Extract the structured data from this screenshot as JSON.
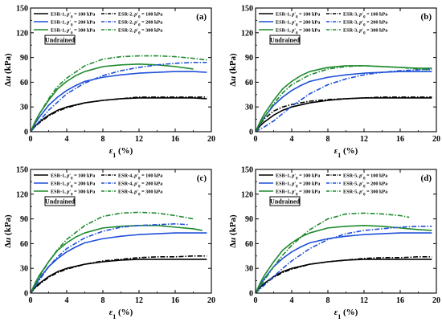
{
  "figure": {
    "y_axis_label_main": "Δu",
    "y_axis_label_unit": " (kPa)",
    "x_axis_label_symbol": "ε",
    "x_axis_label_sub": "1",
    "x_axis_label_unit": " (%)",
    "condition_label": "Undrained"
  },
  "chart_data": [
    {
      "panel": "(a)",
      "type": "line",
      "xlabel": "ε1 (%)",
      "ylabel": "Δu (kPa)",
      "xlim": [
        0,
        20
      ],
      "ylim": [
        0,
        150
      ],
      "xticks": [
        0,
        4,
        8,
        12,
        16,
        20
      ],
      "yticks": [
        0,
        30,
        60,
        90,
        120,
        150
      ],
      "legend_position": "top-left",
      "series": [
        {
          "name": "ESR-1, p′0 = 100 kPa",
          "color": "#000000",
          "dash": "solid",
          "x": [
            0,
            0.5,
            1,
            2,
            3,
            4,
            6,
            8,
            10,
            12,
            14,
            16,
            18,
            19.5
          ],
          "y": [
            0,
            7,
            12,
            20,
            26,
            30,
            35,
            38,
            40,
            41,
            41,
            41,
            41,
            40
          ]
        },
        {
          "name": "ESR-1, p′0 = 200 kPa",
          "color": "#1f4fd8",
          "dash": "solid",
          "x": [
            0,
            0.5,
            1,
            2,
            3,
            4,
            5,
            6,
            8,
            10,
            12,
            14,
            16,
            18,
            19.5
          ],
          "y": [
            0,
            10,
            18,
            32,
            42,
            50,
            56,
            61,
            66,
            69,
            71,
            72,
            73,
            73,
            72
          ]
        },
        {
          "name": "ESR-1, p′0 = 300 kPa",
          "color": "#1e8a2e",
          "dash": "solid",
          "x": [
            0,
            0.5,
            1,
            2,
            3,
            4,
            5,
            6,
            8,
            10,
            12,
            14,
            16,
            18
          ],
          "y": [
            0,
            12,
            22,
            38,
            52,
            61,
            68,
            73,
            79,
            81,
            82,
            81,
            79,
            76
          ]
        },
        {
          "name": "ESR-2, p′0 = 100 kPa",
          "color": "#000000",
          "dash": "dashdot",
          "x": [
            0,
            0.5,
            1,
            2,
            3,
            4,
            6,
            8,
            10,
            12,
            14,
            16,
            18,
            19.5
          ],
          "y": [
            0,
            6,
            11,
            19,
            25,
            29,
            35,
            38,
            40,
            42,
            42,
            42,
            42,
            42
          ]
        },
        {
          "name": "ESR-2, p′0 = 200 kPa",
          "color": "#1f4fd8",
          "dash": "dashdot",
          "x": [
            0,
            1,
            2,
            4,
            6,
            8,
            10,
            12,
            14,
            16,
            18,
            19.5
          ],
          "y": [
            0,
            13,
            26,
            46,
            59,
            68,
            74,
            78,
            81,
            83,
            84,
            84
          ]
        },
        {
          "name": "ESR-2, p′0 = 300 kPa",
          "color": "#1e8a2e",
          "dash": "dashdot",
          "x": [
            0,
            1,
            2,
            3,
            4,
            6,
            8,
            10,
            12,
            14,
            16,
            18,
            19.5
          ],
          "y": [
            0,
            22,
            40,
            55,
            65,
            80,
            88,
            91,
            92,
            92,
            91,
            89,
            87
          ]
        }
      ]
    },
    {
      "panel": "(b)",
      "type": "line",
      "xlabel": "ε1 (%)",
      "ylabel": "Δu (kPa)",
      "xlim": [
        0,
        20
      ],
      "ylim": [
        0,
        150
      ],
      "xticks": [
        0,
        4,
        8,
        12,
        16,
        20
      ],
      "yticks": [
        0,
        30,
        60,
        90,
        120,
        150
      ],
      "legend_position": "top-left",
      "series": [
        {
          "name": "ESR-1, p′0 = 100 kPa",
          "color": "#000000",
          "dash": "solid",
          "x": [
            0,
            0.5,
            1,
            2,
            3,
            4,
            6,
            8,
            10,
            12,
            14,
            16,
            18,
            19.5
          ],
          "y": [
            0,
            7,
            12,
            20,
            26,
            30,
            35,
            38,
            40,
            41,
            41,
            41,
            41,
            41
          ]
        },
        {
          "name": "ESR-1, p′0 = 200 kPa",
          "color": "#1f4fd8",
          "dash": "solid",
          "x": [
            0,
            0.5,
            1,
            2,
            3,
            4,
            5,
            6,
            8,
            10,
            12,
            14,
            16,
            18,
            19.5
          ],
          "y": [
            0,
            10,
            18,
            32,
            42,
            50,
            56,
            61,
            66,
            69,
            71,
            72,
            73,
            73,
            73
          ]
        },
        {
          "name": "ESR-1, p′0 = 300 kPa",
          "color": "#1e8a2e",
          "dash": "solid",
          "x": [
            0,
            0.5,
            1,
            2,
            3,
            4,
            5,
            6,
            8,
            10,
            12,
            14,
            16,
            18,
            19.5
          ],
          "y": [
            0,
            12,
            22,
            38,
            52,
            61,
            68,
            73,
            78,
            80,
            80,
            79,
            78,
            77,
            77
          ]
        },
        {
          "name": "ESR-3, p′0 = 100 kPa",
          "color": "#000000",
          "dash": "dashdot",
          "x": [
            0,
            0.5,
            1,
            2,
            3,
            4,
            6,
            8,
            10,
            12,
            14,
            16,
            18,
            19.5
          ],
          "y": [
            0,
            9,
            16,
            25,
            30,
            33,
            37,
            39,
            40,
            41,
            42,
            42,
            42,
            42
          ]
        },
        {
          "name": "ESR-3, p′0 = 200 kPa",
          "color": "#1f4fd8",
          "dash": "dashdot",
          "x": [
            0,
            1,
            2,
            3,
            4,
            6,
            8,
            10,
            12,
            14,
            16,
            18,
            19.5
          ],
          "y": [
            0,
            6,
            13,
            22,
            31,
            46,
            57,
            64,
            69,
            72,
            74,
            75,
            76
          ]
        },
        {
          "name": "ESR-3, p′0 = 300 kPa",
          "color": "#1e8a2e",
          "dash": "dashdot",
          "x": [
            0,
            1,
            2,
            3,
            4,
            6,
            8,
            10,
            12,
            14,
            16,
            18,
            19.5
          ],
          "y": [
            0,
            18,
            34,
            47,
            57,
            69,
            76,
            79,
            80,
            79,
            78,
            76,
            75
          ]
        }
      ]
    },
    {
      "panel": "(c)",
      "type": "line",
      "xlabel": "ε1 (%)",
      "ylabel": "Δu (kPa)",
      "xlim": [
        0,
        20
      ],
      "ylim": [
        0,
        150
      ],
      "xticks": [
        0,
        4,
        8,
        12,
        16,
        20
      ],
      "yticks": [
        0,
        30,
        60,
        90,
        120,
        150
      ],
      "legend_position": "top-left",
      "series": [
        {
          "name": "ESR-1, p′0 = 100 kPa",
          "color": "#000000",
          "dash": "solid",
          "x": [
            0,
            0.5,
            1,
            2,
            3,
            4,
            6,
            8,
            10,
            12,
            14,
            16,
            18,
            19.5
          ],
          "y": [
            0,
            7,
            12,
            20,
            26,
            30,
            35,
            38,
            40,
            41,
            41,
            41,
            41,
            41
          ]
        },
        {
          "name": "ESR-1, p′0 = 200 kPa",
          "color": "#1f4fd8",
          "dash": "solid",
          "x": [
            0,
            0.5,
            1,
            2,
            3,
            4,
            5,
            6,
            8,
            10,
            12,
            14,
            16,
            18,
            19.5
          ],
          "y": [
            0,
            10,
            18,
            32,
            42,
            50,
            56,
            61,
            66,
            69,
            71,
            72,
            73,
            73,
            73
          ]
        },
        {
          "name": "ESR-1, p′0 = 300 kPa",
          "color": "#1e8a2e",
          "dash": "solid",
          "x": [
            0,
            0.5,
            1,
            2,
            3,
            4,
            5,
            6,
            8,
            10,
            12,
            14,
            16,
            18,
            19
          ],
          "y": [
            0,
            12,
            22,
            38,
            52,
            61,
            68,
            73,
            79,
            81,
            82,
            82,
            80,
            78,
            76
          ]
        },
        {
          "name": "ESR-4, p′0 = 100 kPa",
          "color": "#000000",
          "dash": "dashdot",
          "x": [
            0,
            0.5,
            1,
            2,
            3,
            4,
            6,
            8,
            10,
            12,
            14,
            16,
            18,
            19.5
          ],
          "y": [
            0,
            6,
            11,
            19,
            25,
            29,
            35,
            39,
            41,
            43,
            44,
            44,
            45,
            45
          ]
        },
        {
          "name": "ESR-4, p′0 = 200 kPa",
          "color": "#1f4fd8",
          "dash": "dashdot",
          "x": [
            0,
            1,
            2,
            3,
            4,
            6,
            8,
            10,
            12,
            14,
            16,
            17.5
          ],
          "y": [
            0,
            16,
            32,
            44,
            54,
            67,
            75,
            80,
            82,
            83,
            84,
            83
          ]
        },
        {
          "name": "ESR-4, p′0 = 300 kPa",
          "color": "#1e8a2e",
          "dash": "dashdot",
          "x": [
            0,
            1,
            2,
            3,
            4,
            6,
            8,
            10,
            12,
            14,
            16,
            18
          ],
          "y": [
            0,
            20,
            38,
            53,
            65,
            82,
            93,
            97,
            98,
            97,
            94,
            90
          ]
        }
      ]
    },
    {
      "panel": "(d)",
      "type": "line",
      "xlabel": "ε1 (%)",
      "ylabel": "Δu (kPa)",
      "xlim": [
        0,
        20
      ],
      "ylim": [
        0,
        150
      ],
      "xticks": [
        0,
        4,
        8,
        12,
        16,
        20
      ],
      "yticks": [
        0,
        30,
        60,
        90,
        120,
        150
      ],
      "legend_position": "top-left",
      "series": [
        {
          "name": "ESR-1, p′0 = 100 kPa",
          "color": "#000000",
          "dash": "solid",
          "x": [
            0,
            0.5,
            1,
            2,
            3,
            4,
            6,
            8,
            10,
            12,
            14,
            16,
            18,
            19.5
          ],
          "y": [
            0,
            7,
            12,
            20,
            26,
            30,
            35,
            38,
            40,
            41,
            41,
            41,
            41,
            41
          ]
        },
        {
          "name": "ESR-1, p′0 = 200 kPa",
          "color": "#1f4fd8",
          "dash": "solid",
          "x": [
            0,
            0.5,
            1,
            2,
            3,
            4,
            5,
            6,
            8,
            10,
            12,
            14,
            16,
            18,
            19.5
          ],
          "y": [
            0,
            10,
            18,
            32,
            42,
            50,
            56,
            61,
            66,
            69,
            71,
            72,
            73,
            73,
            73
          ]
        },
        {
          "name": "ESR-1, p′0 = 300 kPa",
          "color": "#1e8a2e",
          "dash": "solid",
          "x": [
            0,
            0.5,
            1,
            2,
            3,
            4,
            5,
            6,
            8,
            10,
            12,
            14,
            16,
            18,
            19.5
          ],
          "y": [
            0,
            12,
            22,
            38,
            52,
            61,
            68,
            73,
            79,
            81,
            82,
            81,
            79,
            77,
            76
          ]
        },
        {
          "name": "ESR-5, p′0 = 100 kPa",
          "color": "#000000",
          "dash": "dashdot",
          "x": [
            0,
            0.5,
            1,
            2,
            3,
            4,
            6,
            8,
            10,
            12,
            14,
            16,
            18,
            19.5
          ],
          "y": [
            0,
            6,
            11,
            19,
            25,
            29,
            35,
            38,
            40,
            42,
            43,
            43,
            44,
            44
          ]
        },
        {
          "name": "ESR-5, p′0 = 200 kPa",
          "color": "#1f4fd8",
          "dash": "dashdot",
          "x": [
            0,
            1,
            2,
            3,
            4,
            6,
            8,
            10,
            12,
            14,
            16,
            18,
            19.5
          ],
          "y": [
            0,
            10,
            20,
            30,
            39,
            54,
            65,
            72,
            76,
            78,
            80,
            81,
            81
          ]
        },
        {
          "name": "ESR-5, p′0 = 300 kPa",
          "color": "#1e8a2e",
          "dash": "dashdot",
          "x": [
            0,
            1,
            2,
            3,
            4,
            6,
            8,
            10,
            12,
            14,
            16,
            17
          ],
          "y": [
            0,
            16,
            32,
            46,
            58,
            77,
            90,
            96,
            97,
            96,
            94,
            92
          ]
        }
      ]
    }
  ]
}
